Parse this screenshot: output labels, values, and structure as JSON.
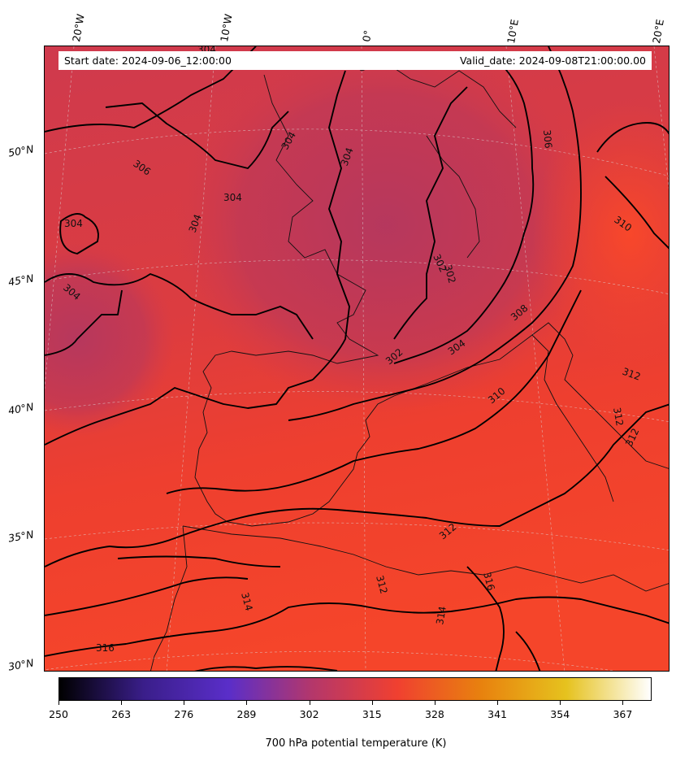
{
  "header": {
    "start_date": "Start date: 2024-09-06_12:00:00",
    "valid_date": "Valid_date: 2024-09-08T21:00:00.00"
  },
  "longitude_labels": [
    "20°W",
    "10°W",
    "0°",
    "10°E",
    "20°E"
  ],
  "latitude_labels": [
    "50°N",
    "45°N",
    "40°N",
    "35°N",
    "30°N"
  ],
  "contour_labels": [
    "304",
    "306",
    "304",
    "304",
    "304",
    "304",
    "304",
    "304",
    "306",
    "310",
    "302",
    "302",
    "302",
    "304",
    "308",
    "310",
    "312",
    "312",
    "312",
    "312",
    "316",
    "312",
    "314",
    "314",
    "316"
  ],
  "colorbar": {
    "title": "700 hPa potential temperature (K)",
    "ticks": [
      "250",
      "263",
      "276",
      "289",
      "302",
      "315",
      "328",
      "341",
      "354",
      "367"
    ],
    "range": [
      250,
      373
    ],
    "colors": [
      "#000000",
      "#3a1e8a",
      "#5a2ec9",
      "#b5376a",
      "#f04030",
      "#e8820e",
      "#e6c21e",
      "#ffffff"
    ]
  },
  "field_colors": {
    "cool": "#b3395f",
    "mid": "#d63a45",
    "warm": "#f23f2a"
  }
}
